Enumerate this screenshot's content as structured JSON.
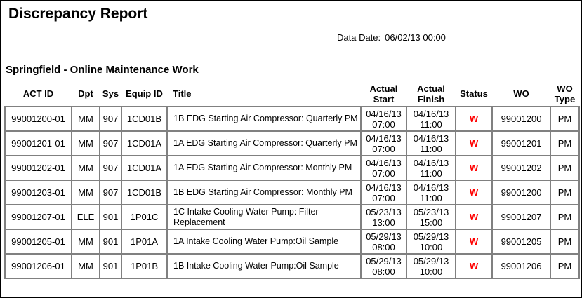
{
  "report": {
    "title": "Discrepancy Report",
    "data_date_label": "Data Date:",
    "data_date_value": "06/02/13 00:00",
    "subtitle": "Springfield - Online Maintenance Work"
  },
  "colors": {
    "status_text": "#ff0000",
    "grid_border": "#808080",
    "page_border": "#000000"
  },
  "table": {
    "columns": [
      {
        "key": "act_id",
        "label": "ACT ID"
      },
      {
        "key": "dpt",
        "label": "Dpt"
      },
      {
        "key": "sys",
        "label": "Sys"
      },
      {
        "key": "equip_id",
        "label": "Equip ID"
      },
      {
        "key": "title",
        "label": "Title"
      },
      {
        "key": "actual_start",
        "label": "Actual\nStart"
      },
      {
        "key": "actual_finish",
        "label": "Actual\nFinish"
      },
      {
        "key": "status",
        "label": "Status"
      },
      {
        "key": "wo",
        "label": "WO"
      },
      {
        "key": "wo_type",
        "label": "WO\nType"
      }
    ],
    "rows": [
      {
        "act_id": "99001200-01",
        "dpt": "MM",
        "sys": "907",
        "equip_id": "1CD01B",
        "title": "1B EDG Starting Air Compressor: Quarterly PM",
        "actual_start": "04/16/13\n07:00",
        "actual_finish": "04/16/13\n11:00",
        "status": "W",
        "wo": "99001200",
        "wo_type": "PM"
      },
      {
        "act_id": "99001201-01",
        "dpt": "MM",
        "sys": "907",
        "equip_id": "1CD01A",
        "title": "1A EDG Starting Air Compressor: Quarterly PM",
        "actual_start": "04/16/13\n07:00",
        "actual_finish": "04/16/13\n11:00",
        "status": "W",
        "wo": "99001201",
        "wo_type": "PM"
      },
      {
        "act_id": "99001202-01",
        "dpt": "MM",
        "sys": "907",
        "equip_id": "1CD01A",
        "title": "1A EDG Starting Air Compressor: Monthly PM",
        "actual_start": "04/16/13\n07:00",
        "actual_finish": "04/16/13\n11:00",
        "status": "W",
        "wo": "99001202",
        "wo_type": "PM"
      },
      {
        "act_id": "99001203-01",
        "dpt": "MM",
        "sys": "907",
        "equip_id": "1CD01B",
        "title": "1B EDG Starting Air Compressor: Monthly PM",
        "actual_start": "04/16/13\n07:00",
        "actual_finish": "04/16/13\n11:00",
        "status": "W",
        "wo": "99001200",
        "wo_type": "PM"
      },
      {
        "act_id": "99001207-01",
        "dpt": "ELE",
        "sys": "901",
        "equip_id": "1P01C",
        "title": "1C Intake Cooling Water Pump: Filter Replacement",
        "actual_start": "05/23/13\n13:00",
        "actual_finish": "05/23/13\n15:00",
        "status": "W",
        "wo": "99001207",
        "wo_type": "PM"
      },
      {
        "act_id": "99001205-01",
        "dpt": "MM",
        "sys": "901",
        "equip_id": "1P01A",
        "title": "1A Intake Cooling Water Pump:Oil Sample",
        "actual_start": "05/29/13\n08:00",
        "actual_finish": "05/29/13\n10:00",
        "status": "W",
        "wo": "99001205",
        "wo_type": "PM"
      },
      {
        "act_id": "99001206-01",
        "dpt": "MM",
        "sys": "901",
        "equip_id": "1P01B",
        "title": "1B Intake Cooling Water Pump:Oil Sample",
        "actual_start": "05/29/13\n08:00",
        "actual_finish": "05/29/13\n10:00",
        "status": "W",
        "wo": "99001206",
        "wo_type": "PM"
      }
    ]
  }
}
